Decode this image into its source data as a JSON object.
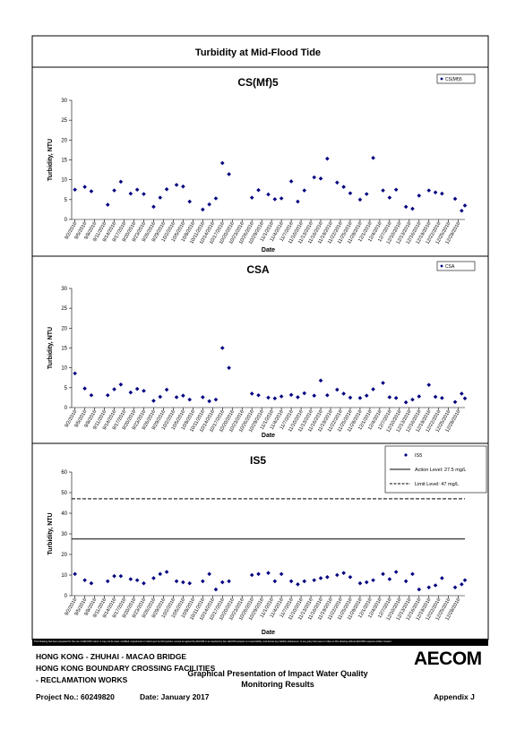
{
  "title": "Turbidity at Mid-Flood Tide",
  "chart_data": [
    {
      "type": "scatter",
      "title": "CS(Mf)5",
      "x_label": "Date",
      "y_label": "Turbidity, NTU",
      "x": [
        "9/2/2016",
        "9/5/2016",
        "9/7/2016",
        "9/12/2016",
        "9/14/2016",
        "9/16/2016",
        "9/19/2016",
        "9/21/2016",
        "9/23/2016",
        "9/26/2016",
        "9/28/2016",
        "9/30/2016",
        "10/3/2016",
        "10/5/2016",
        "10/7/2016",
        "10/11/2016",
        "10/13/2016",
        "10/15/2016",
        "10/17/2016",
        "10/19/2016",
        "10/26/2016",
        "10/28/2016",
        "10/31/2016",
        "11/2/2016",
        "11/4/2016",
        "11/7/2016",
        "11/9/2016",
        "11/11/2016",
        "11/14/2016",
        "11/16/2016",
        "11/18/2016",
        "11/21/2016",
        "11/23/2016",
        "11/25/2016",
        "11/28/2016",
        "11/30/2016",
        "12/2/2016",
        "12/5/2016",
        "12/7/2016",
        "12/9/2016",
        "12/12/2016",
        "12/14/2016",
        "12/16/2016",
        "12/19/2016",
        "12/21/2016",
        "12/23/2016",
        "12/27/2016",
        "12/29/2016",
        "12/30/2016"
      ],
      "series": [
        {
          "name": "CS(Mf)5",
          "color": "#000080",
          "values": [
            7.5,
            8.2,
            7.1,
            3.7,
            7.3,
            9.5,
            6.5,
            7.5,
            6.4,
            3.2,
            5.5,
            7.6,
            8.7,
            8.3,
            4.5,
            2.5,
            3.8,
            5.3,
            14.2,
            11.4,
            5.5,
            7.4,
            6.3,
            5.1,
            5.3,
            9.6,
            4.5,
            7.3,
            10.6,
            10.3,
            15.3,
            9.3,
            8.2,
            6.6,
            5.0,
            6.4,
            15.5,
            7.3,
            5.5,
            7.5,
            3.2,
            2.7,
            6.0,
            7.3,
            6.8,
            6.5,
            5.2,
            2.2,
            3.5
          ]
        }
      ],
      "xlim": [
        "9/1/2016",
        "12/30/2016"
      ],
      "xticks": [
        "9/2/2016",
        "9/5/2016",
        "9/8/2016",
        "9/11/2016",
        "9/14/2016",
        "9/17/2016",
        "9/20/2016",
        "9/23/2016",
        "9/26/2016",
        "9/29/2016",
        "10/2/2016",
        "10/5/2016",
        "10/8/2016",
        "10/11/2016",
        "10/14/2016",
        "10/17/2016",
        "10/20/2016",
        "10/23/2016",
        "10/26/2016",
        "10/29/2016",
        "11/1/2016",
        "11/4/2016",
        "11/7/2016",
        "11/10/2016",
        "11/13/2016",
        "11/16/2016",
        "11/19/2016",
        "11/22/2016",
        "11/25/2016",
        "11/28/2016",
        "12/1/2016",
        "12/4/2016",
        "12/7/2016",
        "12/10/2016",
        "12/13/2016",
        "12/16/2016",
        "12/19/2016",
        "12/22/2016",
        "12/25/2016",
        "12/28/2016"
      ],
      "ylim": [
        0,
        30
      ],
      "yticks": [
        0,
        5,
        10,
        15,
        20,
        25,
        30
      ],
      "legend": "top-right"
    },
    {
      "type": "scatter",
      "title": "CSA",
      "x_label": "Date",
      "y_label": "Turbidity, NTU",
      "x": [
        "9/2/2016",
        "9/5/2016",
        "9/7/2016",
        "9/12/2016",
        "9/14/2016",
        "9/16/2016",
        "9/19/2016",
        "9/21/2016",
        "9/23/2016",
        "9/26/2016",
        "9/28/2016",
        "9/30/2016",
        "10/3/2016",
        "10/5/2016",
        "10/7/2016",
        "10/11/2016",
        "10/13/2016",
        "10/15/2016",
        "10/17/2016",
        "10/19/2016",
        "10/26/2016",
        "10/28/2016",
        "10/31/2016",
        "11/2/2016",
        "11/4/2016",
        "11/7/2016",
        "11/9/2016",
        "11/11/2016",
        "11/14/2016",
        "11/16/2016",
        "11/18/2016",
        "11/21/2016",
        "11/23/2016",
        "11/25/2016",
        "11/28/2016",
        "11/30/2016",
        "12/2/2016",
        "12/5/2016",
        "12/7/2016",
        "12/9/2016",
        "12/12/2016",
        "12/14/2016",
        "12/16/2016",
        "12/19/2016",
        "12/21/2016",
        "12/23/2016",
        "12/27/2016",
        "12/29/2016",
        "12/30/2016"
      ],
      "series": [
        {
          "name": "CSA",
          "color": "#000080",
          "values": [
            8.6,
            4.8,
            3.1,
            3.1,
            4.6,
            5.8,
            3.8,
            4.7,
            4.2,
            1.7,
            2.7,
            4.5,
            2.6,
            3.0,
            2.0,
            2.6,
            1.6,
            2.0,
            15.0,
            10.0,
            3.5,
            3.1,
            2.5,
            2.3,
            2.8,
            3.2,
            2.6,
            3.6,
            3.0,
            6.8,
            3.1,
            4.5,
            3.5,
            2.5,
            2.4,
            3.0,
            4.6,
            6.2,
            2.6,
            2.4,
            1.3,
            2.0,
            2.8,
            5.7,
            2.7,
            2.4,
            1.4,
            3.5,
            2.3
          ]
        }
      ],
      "xlim": [
        "9/1/2016",
        "12/30/2016"
      ],
      "xticks": [
        "9/2/2016",
        "9/5/2016",
        "9/8/2016",
        "9/11/2016",
        "9/14/2016",
        "9/17/2016",
        "9/20/2016",
        "9/23/2016",
        "9/26/2016",
        "9/29/2016",
        "10/2/2016",
        "10/5/2016",
        "10/8/2016",
        "10/11/2016",
        "10/14/2016",
        "10/17/2016",
        "10/20/2016",
        "10/23/2016",
        "10/26/2016",
        "10/29/2016",
        "11/1/2016",
        "11/4/2016",
        "11/7/2016",
        "11/10/2016",
        "11/13/2016",
        "11/16/2016",
        "11/19/2016",
        "11/22/2016",
        "11/25/2016",
        "11/28/2016",
        "12/1/2016",
        "12/4/2016",
        "12/7/2016",
        "12/10/2016",
        "12/13/2016",
        "12/16/2016",
        "12/19/2016",
        "12/22/2016",
        "12/25/2016",
        "12/28/2016"
      ],
      "ylim": [
        0,
        30
      ],
      "yticks": [
        0,
        5,
        10,
        15,
        20,
        25,
        30
      ],
      "legend": "top-right"
    },
    {
      "type": "scatter",
      "title": "IS5",
      "x_label": "Date",
      "y_label": "Turbidity, NTU",
      "x": [
        "9/2/2016",
        "9/5/2016",
        "9/7/2016",
        "9/12/2016",
        "9/14/2016",
        "9/16/2016",
        "9/19/2016",
        "9/21/2016",
        "9/23/2016",
        "9/26/2016",
        "9/28/2016",
        "9/30/2016",
        "10/3/2016",
        "10/5/2016",
        "10/7/2016",
        "10/11/2016",
        "10/13/2016",
        "10/15/2016",
        "10/17/2016",
        "10/19/2016",
        "10/26/2016",
        "10/28/2016",
        "10/31/2016",
        "11/2/2016",
        "11/4/2016",
        "11/7/2016",
        "11/9/2016",
        "11/11/2016",
        "11/14/2016",
        "11/16/2016",
        "11/18/2016",
        "11/21/2016",
        "11/23/2016",
        "11/25/2016",
        "11/28/2016",
        "11/30/2016",
        "12/2/2016",
        "12/5/2016",
        "12/7/2016",
        "12/9/2016",
        "12/12/2016",
        "12/14/2016",
        "12/16/2016",
        "12/19/2016",
        "12/21/2016",
        "12/23/2016",
        "12/27/2016",
        "12/29/2016",
        "12/30/2016"
      ],
      "series": [
        {
          "name": "IS5",
          "color": "#000080",
          "values": [
            10.5,
            7.5,
            6.0,
            7.0,
            9.5,
            9.5,
            8.0,
            7.5,
            6.0,
            8.5,
            10.5,
            11.5,
            7.0,
            6.5,
            6.0,
            7.0,
            10.5,
            3.0,
            6.5,
            7.0,
            10.0,
            10.5,
            11.0,
            7.0,
            10.5,
            7.0,
            5.5,
            7.0,
            7.5,
            8.5,
            9.0,
            10.0,
            11.0,
            9.0,
            6.0,
            6.5,
            7.5,
            10.5,
            8.0,
            11.5,
            7.0,
            10.5,
            3.0,
            4.0,
            5.0,
            8.5,
            4.0,
            5.5,
            7.5
          ]
        }
      ],
      "reference_lines": [
        {
          "name": "Action Level: 27.5 mg/L",
          "value": 27.5,
          "style": "solid",
          "color": "#000000"
        },
        {
          "name": "Limit Level: 47 mg/L",
          "value": 47,
          "style": "dashed",
          "color": "#000000"
        }
      ],
      "xlim": [
        "9/1/2016",
        "12/30/2016"
      ],
      "xticks": [
        "9/2/2016",
        "9/5/2016",
        "9/8/2016",
        "9/11/2016",
        "9/14/2016",
        "9/17/2016",
        "9/20/2016",
        "9/23/2016",
        "9/26/2016",
        "9/29/2016",
        "10/2/2016",
        "10/5/2016",
        "10/8/2016",
        "10/11/2016",
        "10/14/2016",
        "10/17/2016",
        "10/20/2016",
        "10/23/2016",
        "10/26/2016",
        "10/29/2016",
        "11/1/2016",
        "11/4/2016",
        "11/7/2016",
        "11/10/2016",
        "11/13/2016",
        "11/16/2016",
        "11/19/2016",
        "11/22/2016",
        "11/25/2016",
        "11/28/2016",
        "12/1/2016",
        "12/4/2016",
        "12/7/2016",
        "12/10/2016",
        "12/13/2016",
        "12/16/2016",
        "12/19/2016",
        "12/22/2016",
        "12/25/2016",
        "12/28/2016"
      ],
      "ylim": [
        0,
        60
      ],
      "yticks": [
        0,
        10,
        20,
        30,
        40,
        50,
        60
      ],
      "legend": "top-right"
    }
  ],
  "footer": {
    "disclaimer": "This Drawing has been prepared for the use of AECOM's client. It may not be used, modified, reproduced or relied upon by third parties, except as agreed by AECOM or as required by law. AECOM accepts no responsibility, and denies any liability whatsoever, to any party that uses or relies on this drawing without AECOM's express written consent.",
    "project_lines": [
      "HONG KONG - ZHUHAI - MACAO BRIDGE",
      "HONG KONG BOUNDARY CROSSING FACILITIES",
      "- RECLAMATION WORKS"
    ],
    "drawing_title": [
      "Graphical Presentation of Impact Water Quality",
      "Monitoring Results"
    ],
    "logo": "AECOM",
    "project_no": "Project No.: 60249820",
    "date": "Date: January 2017",
    "appendix": "Appendix J"
  }
}
